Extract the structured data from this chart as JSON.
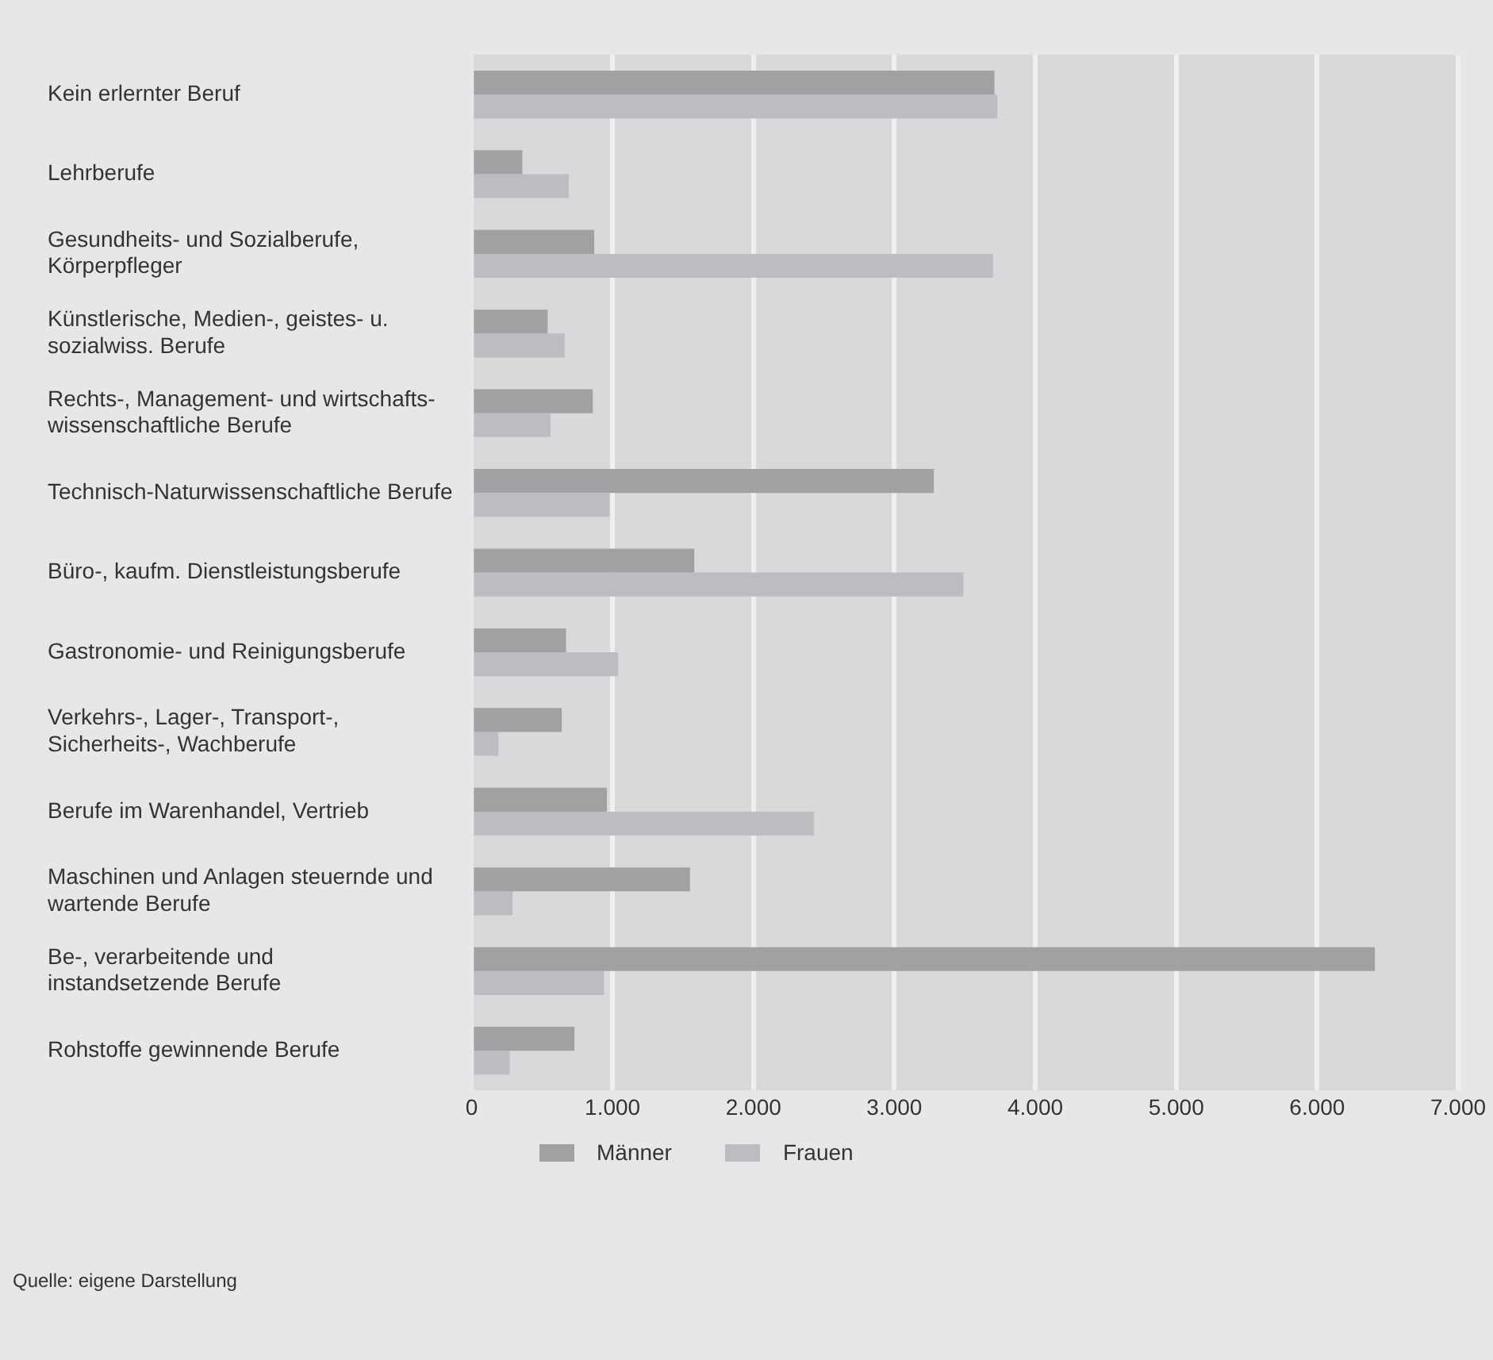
{
  "chart_data": {
    "type": "bar",
    "orientation": "horizontal",
    "categories": [
      "Kein erlernter Beruf",
      "Lehrberufe",
      "Gesundheits- und Sozialberufe,\nKörperpfleger",
      "Künstlerische, Medien-, geistes- u.\nsozialwiss. Berufe",
      "Rechts-, Management- und wirtschafts-\nwissenschaftliche Berufe",
      "Technisch-Naturwissenschaftliche Berufe",
      "Büro-, kaufm. Dienstleistungsberufe",
      "Gastronomie- und Reinigungsberufe",
      "Verkehrs-, Lager-, Transport-,\nSicherheits-, Wachberufe",
      "Berufe im Warenhandel, Vertrieb",
      "Maschinen und Anlagen steuernde und\nwartende Berufe",
      "Be-, verarbeitende und\ninstandsetzende Berufe",
      "Rohstoffe gewinnende Berufe"
    ],
    "series": [
      {
        "name": "Männer",
        "color": "#a0a1a3",
        "values": [
          3710,
          360,
          870,
          540,
          860,
          3280,
          1580,
          670,
          640,
          960,
          1550,
          6410,
          730
        ]
      },
      {
        "name": "Frauen",
        "color": "#bcbdc0",
        "values": [
          3730,
          690,
          3700,
          660,
          560,
          980,
          3490,
          1040,
          190,
          2430,
          290,
          940,
          270
        ]
      }
    ],
    "xlim": [
      0,
      7000
    ],
    "xticks": [
      {
        "value": 0,
        "label": "0"
      },
      {
        "value": 1000,
        "label": "1.000"
      },
      {
        "value": 2000,
        "label": "2.000"
      },
      {
        "value": 3000,
        "label": "3.000"
      },
      {
        "value": 4000,
        "label": "4.000"
      },
      {
        "value": 5000,
        "label": "5.000"
      },
      {
        "value": 6000,
        "label": "6.000"
      },
      {
        "value": 7000,
        "label": "7.000"
      }
    ],
    "grid": "x",
    "legend": "bottom left",
    "annotations": [
      "Quelle: eigene Darstellung"
    ]
  }
}
